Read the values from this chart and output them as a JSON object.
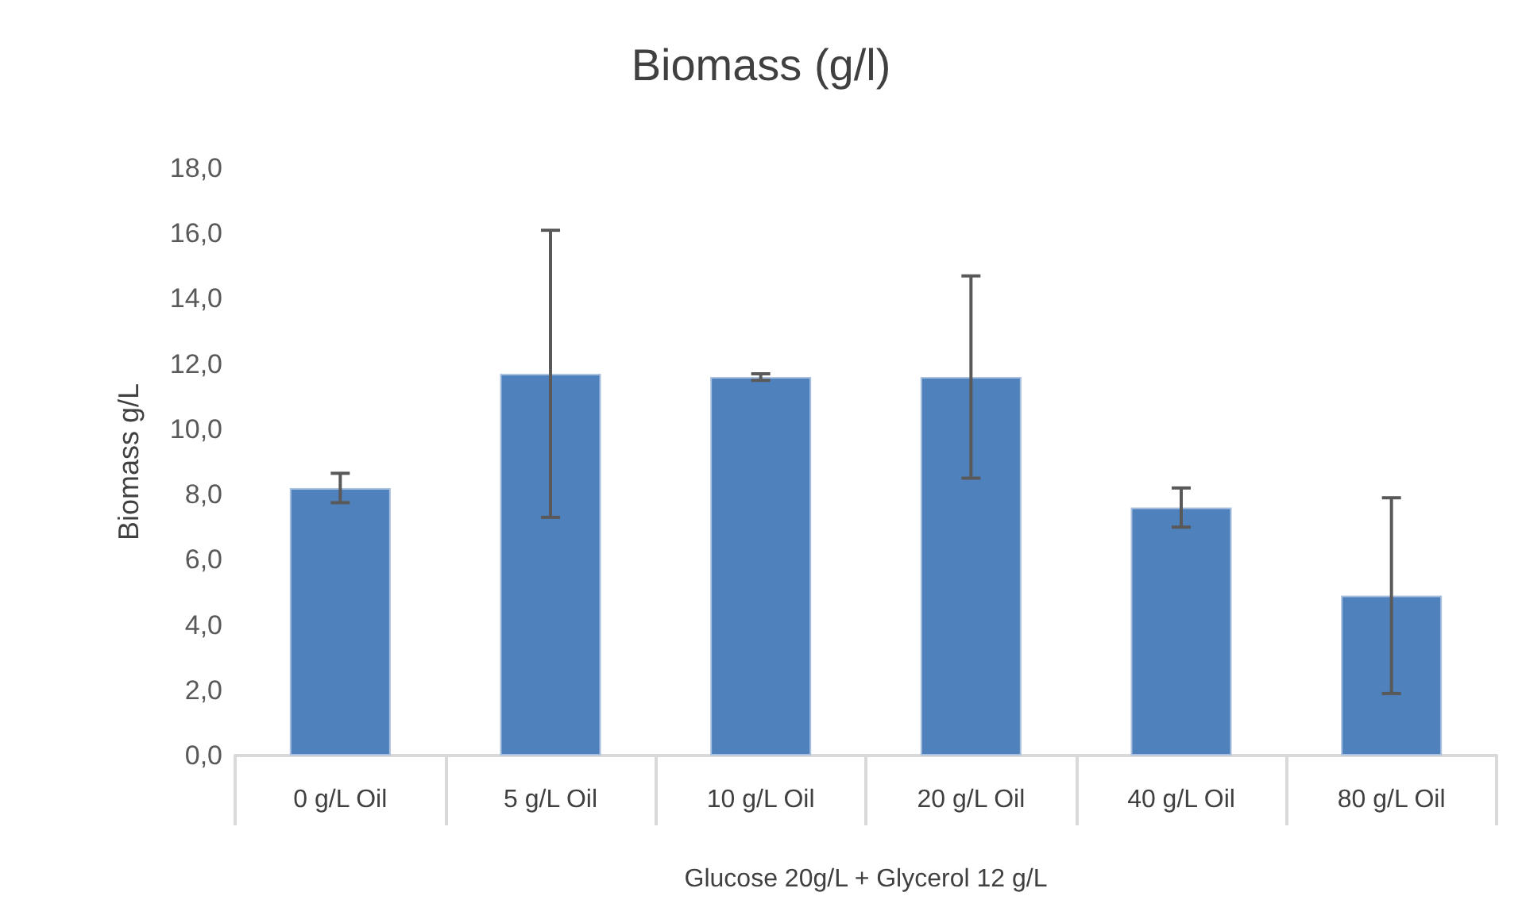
{
  "chart_data": {
    "type": "bar",
    "title": "Biomass (g/l)",
    "ylabel": "Biomass g/L",
    "xlabel": "Glucose 20g/L + Glycerol 12 g/L",
    "categories": [
      "0 g/L Oil",
      "5 g/L Oil",
      "10 g/L Oil",
      "20 g/L Oil",
      "40 g/L Oil",
      "80 g/L Oil"
    ],
    "values": [
      8.2,
      11.7,
      11.6,
      11.6,
      7.6,
      4.9
    ],
    "errors": [
      0.45,
      4.4,
      0.1,
      3.1,
      0.6,
      3.0
    ],
    "color": "#4f81bd",
    "ylim": [
      0,
      18
    ],
    "yticks": [
      {
        "value": 0,
        "label": "0,0"
      },
      {
        "value": 2,
        "label": "2,0"
      },
      {
        "value": 4,
        "label": "4,0"
      },
      {
        "value": 6,
        "label": "6,0"
      },
      {
        "value": 8,
        "label": "8,0"
      },
      {
        "value": 10,
        "label": "10,0"
      },
      {
        "value": 12,
        "label": "12,0"
      },
      {
        "value": 14,
        "label": "14,0"
      },
      {
        "value": 16,
        "label": "16,0"
      },
      {
        "value": 18,
        "label": "18,0"
      }
    ],
    "grid": false
  }
}
